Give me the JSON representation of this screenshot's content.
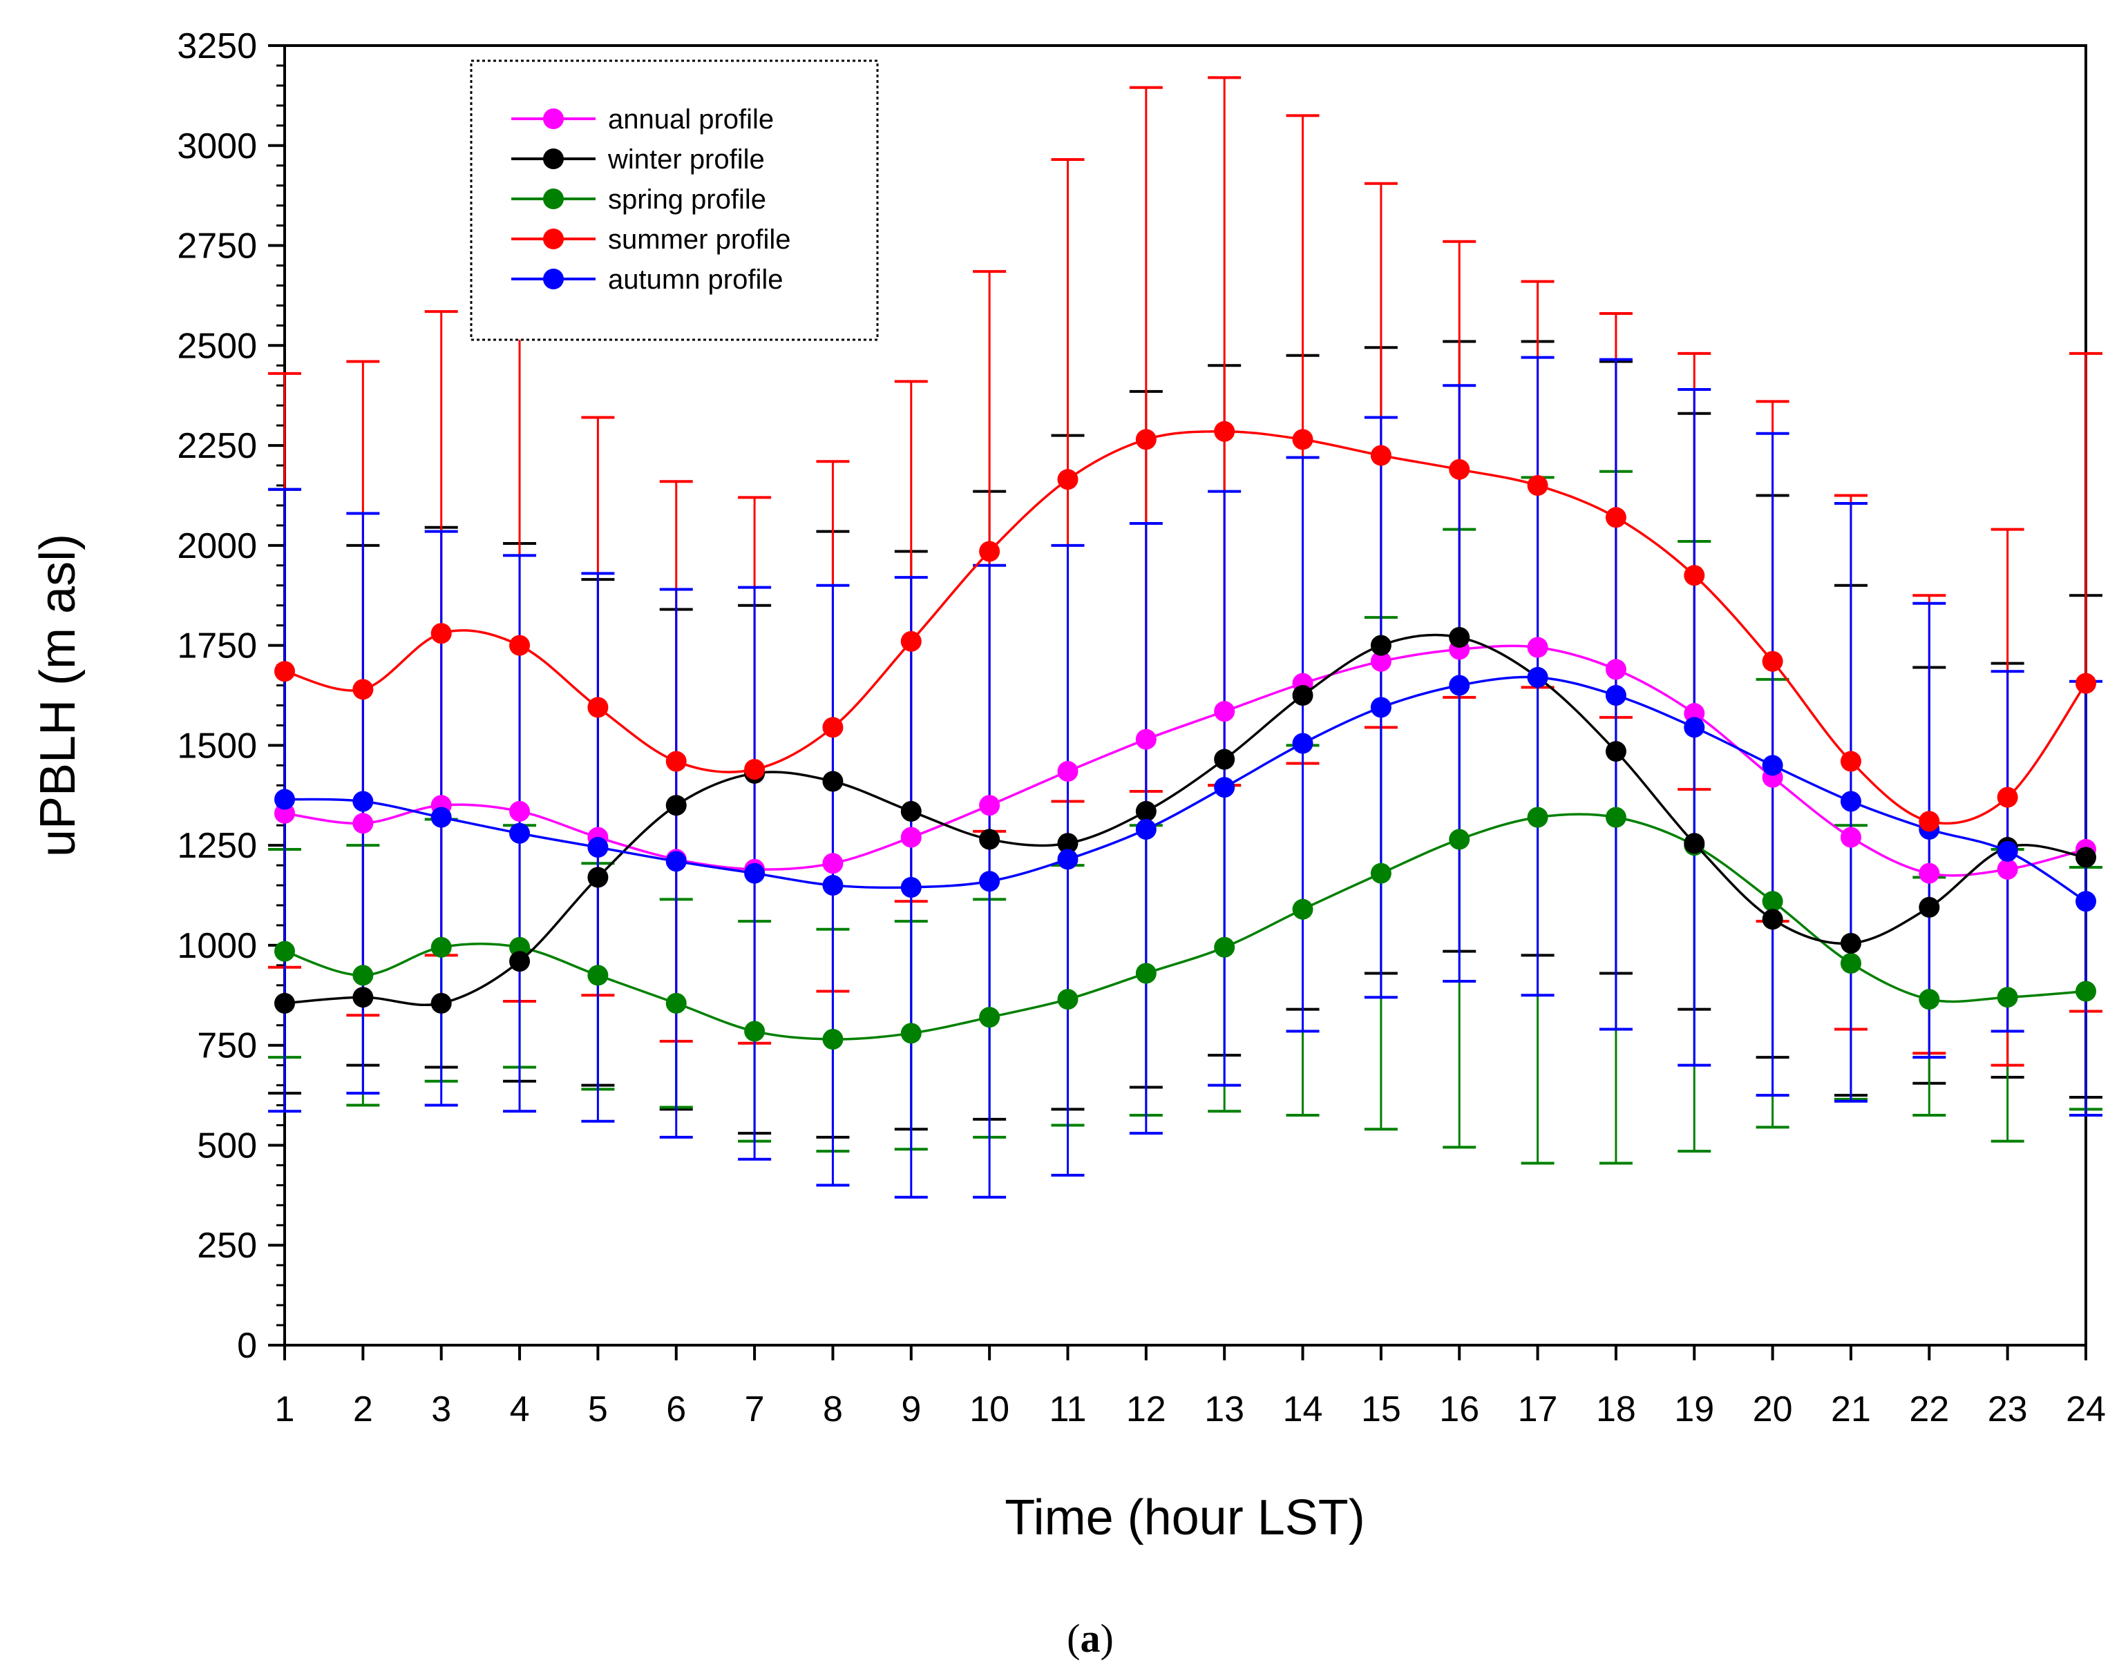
{
  "chart_data": {
    "type": "line",
    "title": "",
    "xlabel": "Time (hour LST)",
    "ylabel": "uPBLH (m asl)",
    "caption_open": "(",
    "caption_letter": "a",
    "caption_close": ")",
    "xlim": [
      1,
      24
    ],
    "ylim": [
      0,
      3250
    ],
    "x": [
      1,
      2,
      3,
      4,
      5,
      6,
      7,
      8,
      9,
      10,
      11,
      12,
      13,
      14,
      15,
      16,
      17,
      18,
      19,
      20,
      21,
      22,
      23,
      24
    ],
    "x_ticks": [
      "1",
      "2",
      "3",
      "4",
      "5",
      "6",
      "7",
      "8",
      "9",
      "10",
      "11",
      "12",
      "13",
      "14",
      "15",
      "16",
      "17",
      "18",
      "19",
      "20",
      "21",
      "22",
      "23",
      "24"
    ],
    "y_ticks": [
      "0",
      "250",
      "500",
      "750",
      "1000",
      "1250",
      "1500",
      "1750",
      "2000",
      "2250",
      "2500",
      "2750",
      "3000",
      "3250"
    ],
    "legend_position": "top-left",
    "series": [
      {
        "name": "annual profile",
        "color": "#ff00ff",
        "values": [
          1330,
          1305,
          1350,
          1335,
          1270,
          1215,
          1190,
          1205,
          1270,
          1350,
          1435,
          1515,
          1585,
          1655,
          1710,
          1740,
          1745,
          1690,
          1580,
          1420,
          1270,
          1180,
          1190,
          1240
        ],
        "error_plus": [],
        "error_minus": []
      },
      {
        "name": "winter profile",
        "color": "#000000",
        "values": [
          855,
          870,
          855,
          960,
          1170,
          1350,
          1430,
          1410,
          1335,
          1265,
          1255,
          1335,
          1465,
          1625,
          1750,
          1770,
          1670,
          1485,
          1255,
          1065,
          1005,
          1095,
          1245,
          1220
        ],
        "error_plus": [
          2140,
          2000,
          2045,
          2005,
          1915,
          1840,
          1850,
          2035,
          1985,
          2135,
          2275,
          2385,
          2450,
          2475,
          2495,
          2510,
          2510,
          2460,
          2330,
          2125,
          1900,
          1695,
          1705,
          1875
        ],
        "error_minus": [
          630,
          700,
          695,
          660,
          650,
          590,
          530,
          520,
          540,
          565,
          590,
          645,
          725,
          840,
          930,
          985,
          975,
          930,
          840,
          720,
          625,
          655,
          670,
          620
        ]
      },
      {
        "name": "spring profile",
        "color": "#008000",
        "values": [
          985,
          925,
          995,
          995,
          925,
          855,
          785,
          765,
          780,
          820,
          865,
          930,
          995,
          1090,
          1180,
          1265,
          1320,
          1320,
          1250,
          1110,
          955,
          865,
          870,
          885
        ],
        "error_plus": [
          1240,
          1250,
          1315,
          1300,
          1205,
          1115,
          1060,
          1040,
          1060,
          1115,
          1200,
          1300,
          1400,
          1500,
          1820,
          2040,
          2170,
          2185,
          2010,
          1665,
          1300,
          1170,
          1240,
          1195
        ],
        "error_minus": [
          720,
          600,
          660,
          695,
          640,
          595,
          510,
          485,
          490,
          520,
          550,
          575,
          585,
          575,
          540,
          495,
          455,
          455,
          485,
          545,
          615,
          575,
          510,
          590
        ]
      },
      {
        "name": "summer profile",
        "color": "#ff0000",
        "values": [
          1685,
          1640,
          1780,
          1750,
          1595,
          1460,
          1440,
          1545,
          1760,
          1985,
          2165,
          2265,
          2285,
          2265,
          2225,
          2190,
          2150,
          2070,
          1925,
          1710,
          1460,
          1310,
          1370,
          1655
        ],
        "error_plus": [
          2430,
          2460,
          2585,
          2530,
          2320,
          2160,
          2120,
          2210,
          2410,
          2685,
          2965,
          3145,
          3170,
          3075,
          2905,
          2760,
          2660,
          2580,
          2480,
          2360,
          2125,
          1875,
          2040,
          2480
        ],
        "error_minus": [
          945,
          825,
          975,
          860,
          875,
          760,
          755,
          885,
          1110,
          1285,
          1360,
          1385,
          1400,
          1455,
          1545,
          1620,
          1645,
          1570,
          1390,
          1060,
          790,
          730,
          700,
          835
        ]
      },
      {
        "name": "autumn profile",
        "color": "#0000ff",
        "values": [
          1365,
          1360,
          1320,
          1280,
          1245,
          1210,
          1180,
          1150,
          1145,
          1160,
          1215,
          1290,
          1395,
          1505,
          1595,
          1650,
          1670,
          1625,
          1545,
          1450,
          1360,
          1290,
          1235,
          1110
        ],
        "error_plus": [
          2140,
          2080,
          2035,
          1975,
          1930,
          1890,
          1895,
          1900,
          1920,
          1950,
          2000,
          2055,
          2135,
          2220,
          2320,
          2400,
          2470,
          2465,
          2390,
          2280,
          2105,
          1855,
          1685,
          1660
        ],
        "error_minus": [
          585,
          630,
          600,
          585,
          560,
          520,
          465,
          400,
          370,
          370,
          425,
          530,
          650,
          785,
          870,
          910,
          875,
          790,
          700,
          625,
          610,
          720,
          785,
          575
        ]
      }
    ]
  }
}
